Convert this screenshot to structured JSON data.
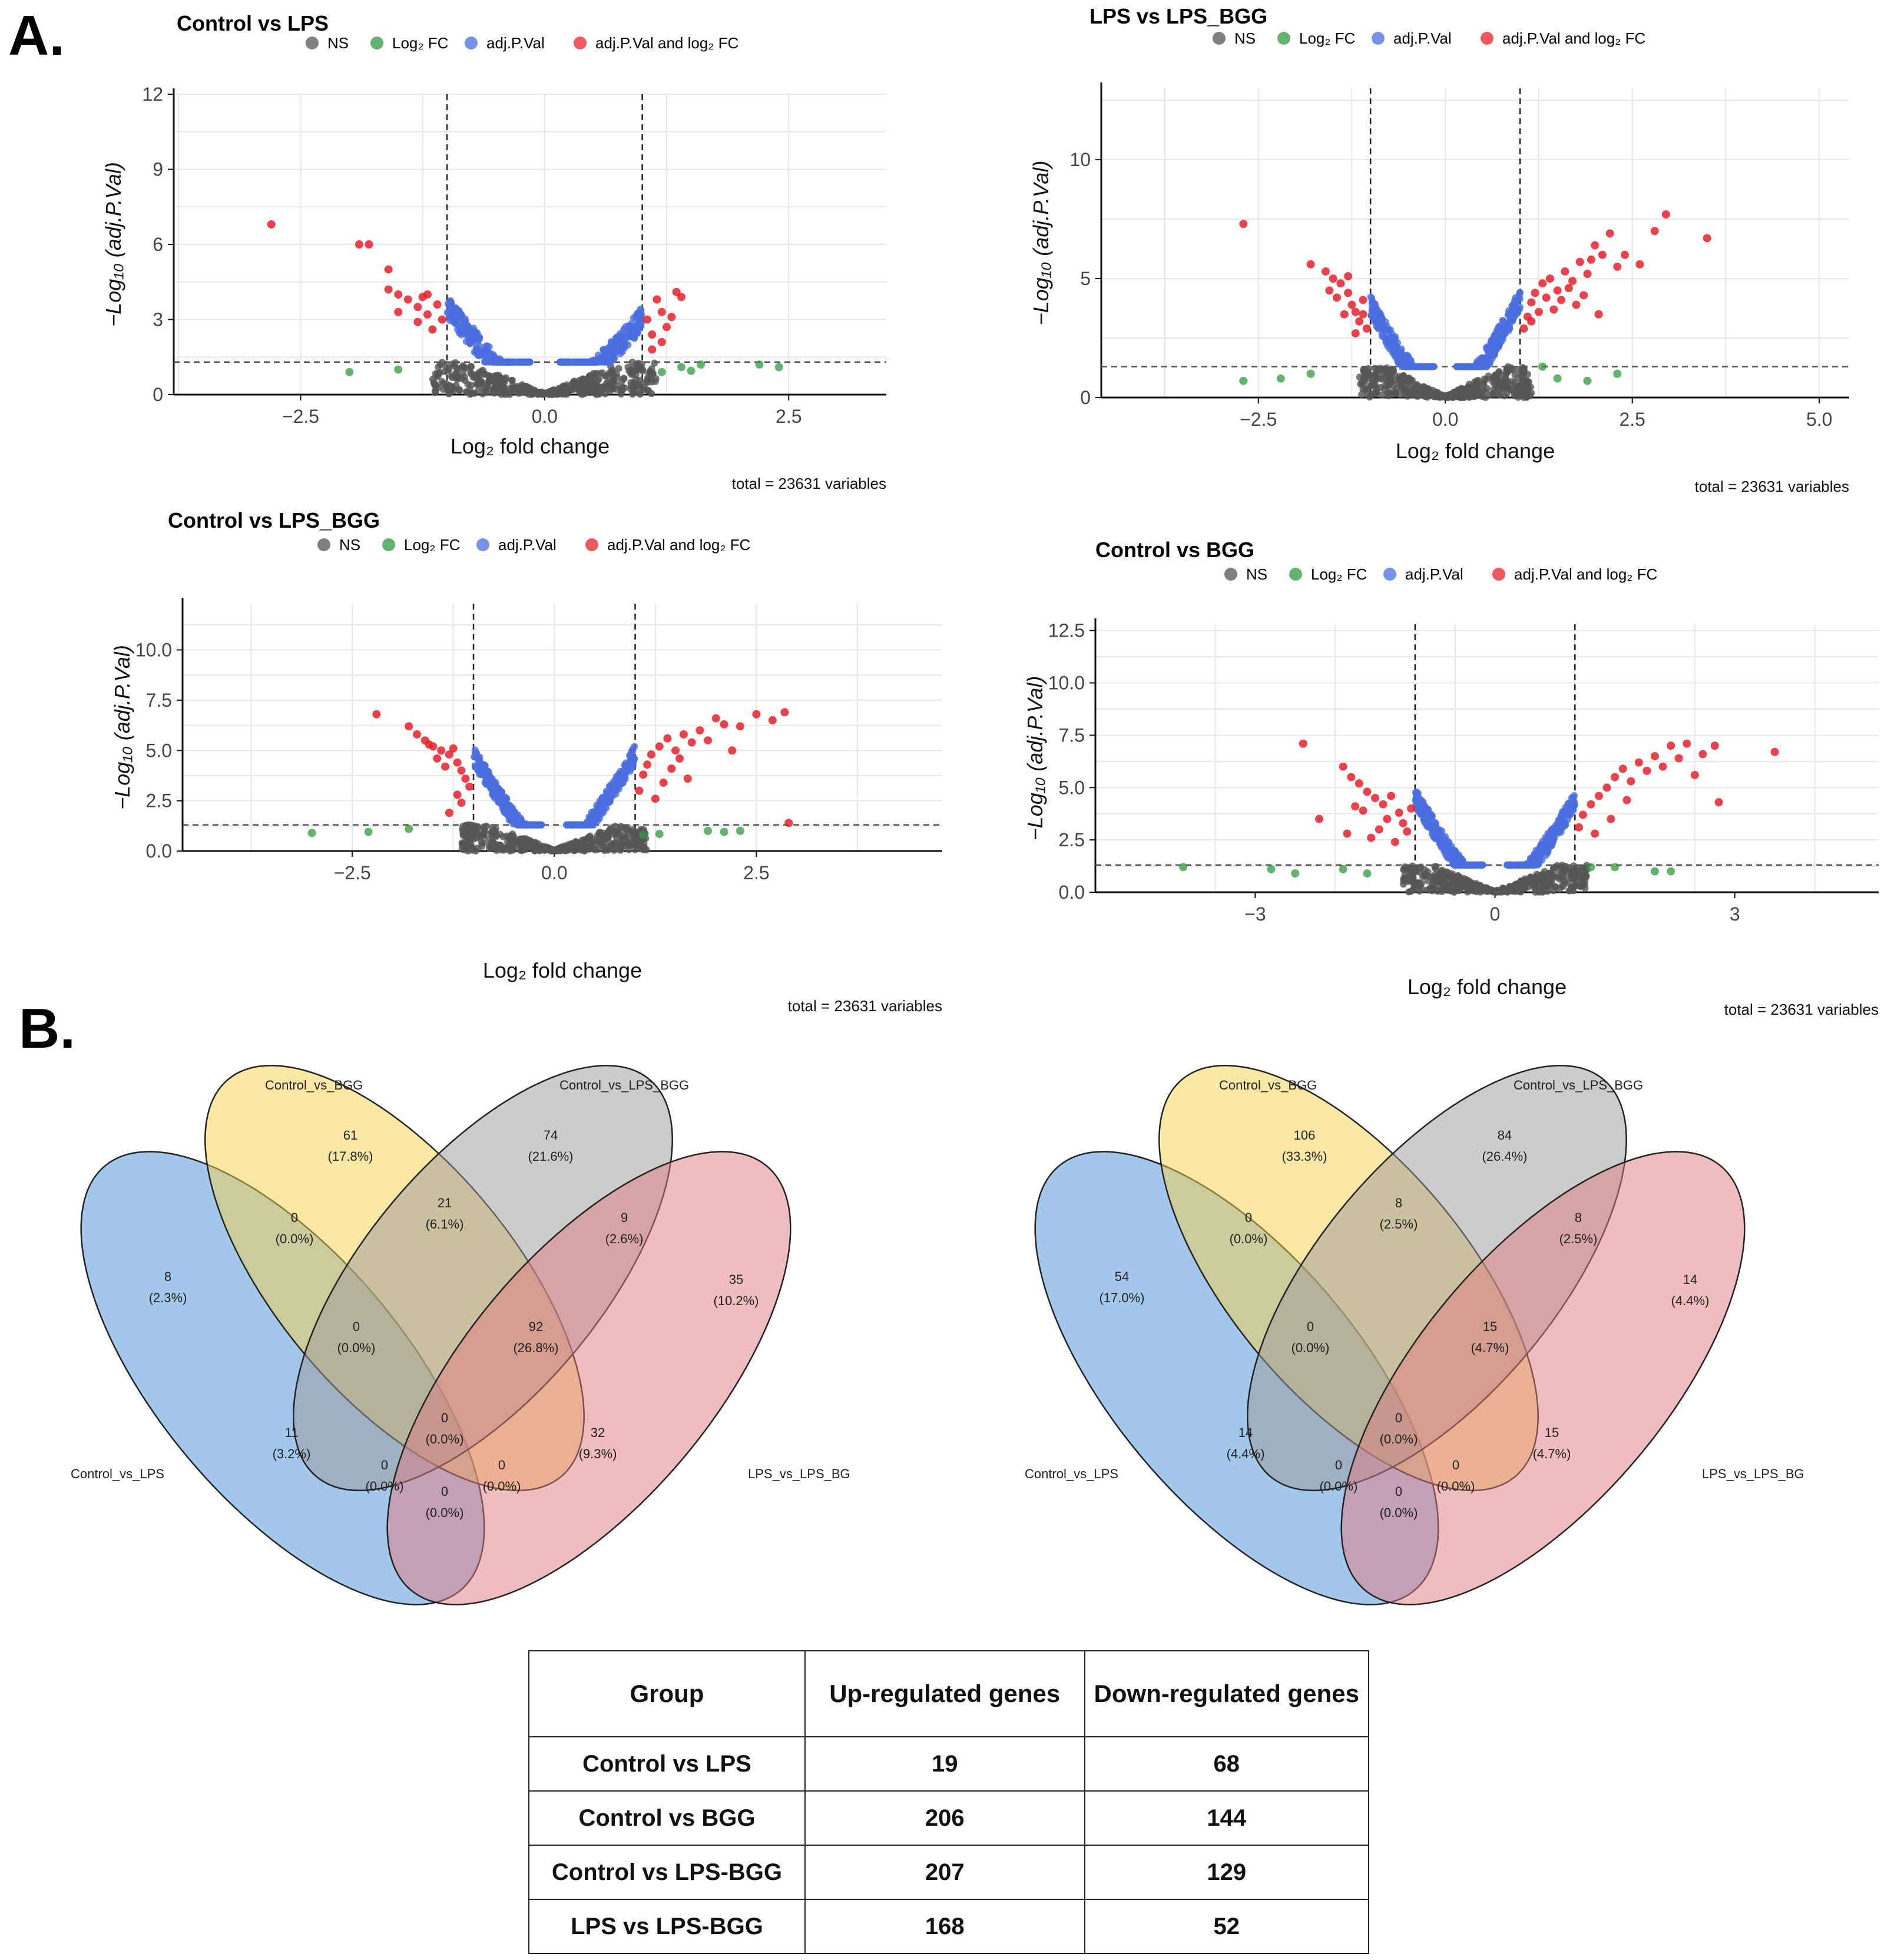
{
  "panel_labels": {
    "a": "A.",
    "b": "B."
  },
  "colors": {
    "ns": "#555555",
    "log2fc": "#2e9a3c",
    "adjp": "#4a6ee0",
    "both": "#e8202a",
    "venn_blue": "#4a90d9",
    "venn_yellow": "#f2d24a",
    "venn_gray": "#9a9a9a",
    "venn_red": "#e07a80"
  },
  "legend": {
    "ns": "NS",
    "log2fc": "Log₂ FC",
    "adjp": "adj.P.Val",
    "both": "adj.P.Val and log₂ FC"
  },
  "chart_data": [
    {
      "type": "scatter",
      "title": "Control vs LPS",
      "xlabel": "Log₂ fold change",
      "ylabel": "−Log₁₀ (adj.P.Val)",
      "xlim": [
        -3.8,
        3.5
      ],
      "ylim": [
        0,
        12
      ],
      "xticks": [
        -2.5,
        0.0,
        2.5
      ],
      "xtick_labels": [
        "−2.5",
        "0.0",
        "2.5"
      ],
      "yticks": [
        0,
        3,
        6,
        9,
        12
      ],
      "ytick_labels": [
        "0",
        "3",
        "6",
        "9",
        "12"
      ],
      "fc_cutoff": 1,
      "p_cutoff": 1.3,
      "total": "total = 23631 variables",
      "left_peak": 4.0,
      "right_peak": 3.5,
      "red_left": [
        [
          -2.8,
          6.8
        ],
        [
          -1.9,
          6.0
        ],
        [
          -1.8,
          6.0
        ],
        [
          -1.6,
          5.0
        ],
        [
          -1.6,
          4.2
        ],
        [
          -1.5,
          4.0
        ],
        [
          -1.4,
          3.8
        ],
        [
          -1.3,
          3.5
        ],
        [
          -1.25,
          3.9
        ],
        [
          -1.2,
          3.2
        ],
        [
          -1.15,
          2.6
        ],
        [
          -1.1,
          3.6
        ],
        [
          -1.05,
          3.0
        ],
        [
          -1.5,
          3.3
        ],
        [
          -1.3,
          2.9
        ],
        [
          -1.2,
          4.0
        ]
      ],
      "red_right": [
        [
          1.05,
          3.0
        ],
        [
          1.1,
          2.4
        ],
        [
          1.15,
          3.8
        ],
        [
          1.2,
          3.3
        ],
        [
          1.25,
          2.7
        ],
        [
          1.3,
          3.1
        ],
        [
          1.35,
          4.1
        ],
        [
          1.4,
          3.9
        ],
        [
          1.1,
          1.8
        ],
        [
          1.2,
          2.1
        ]
      ],
      "green": [
        [
          -2.0,
          0.9
        ],
        [
          -1.5,
          1.0
        ],
        [
          1.2,
          0.9
        ],
        [
          1.4,
          1.1
        ],
        [
          1.6,
          1.2
        ],
        [
          2.2,
          1.2
        ],
        [
          2.4,
          1.1
        ],
        [
          1.5,
          0.95
        ]
      ]
    },
    {
      "type": "scatter",
      "title": "LPS vs LPS_BGG",
      "xlabel": "Log₂ fold change",
      "ylabel": "−Log₁₀ (adj.P.Val)",
      "xlim": [
        -4.6,
        5.4
      ],
      "ylim": [
        0,
        13
      ],
      "xticks": [
        -2.5,
        0.0,
        2.5,
        5.0
      ],
      "xtick_labels": [
        "−2.5",
        "0.0",
        "2.5",
        "5.0"
      ],
      "yticks": [
        0,
        5,
        10
      ],
      "ytick_labels": [
        "0",
        "5",
        "10"
      ],
      "fc_cutoff": 1,
      "p_cutoff": 1.3,
      "total": "total = 23631 variables",
      "left_peak": 4.3,
      "right_peak": 4.6,
      "red_left": [
        [
          -2.7,
          7.3
        ],
        [
          -1.8,
          5.6
        ],
        [
          -1.6,
          5.3
        ],
        [
          -1.5,
          5.0
        ],
        [
          -1.4,
          4.8
        ],
        [
          -1.3,
          4.4
        ],
        [
          -1.25,
          3.9
        ],
        [
          -1.2,
          3.6
        ],
        [
          -1.15,
          3.2
        ],
        [
          -1.1,
          4.1
        ],
        [
          -1.05,
          2.9
        ],
        [
          -1.35,
          3.5
        ],
        [
          -1.45,
          4.2
        ],
        [
          -1.2,
          2.7
        ],
        [
          -1.1,
          3.5
        ],
        [
          -1.3,
          5.1
        ],
        [
          -1.55,
          4.5
        ]
      ],
      "red_right": [
        [
          1.05,
          2.9
        ],
        [
          1.1,
          3.4
        ],
        [
          1.15,
          4.0
        ],
        [
          1.2,
          4.4
        ],
        [
          1.3,
          4.8
        ],
        [
          1.4,
          5.0
        ],
        [
          1.5,
          4.5
        ],
        [
          1.6,
          5.3
        ],
        [
          1.7,
          4.9
        ],
        [
          1.8,
          5.7
        ],
        [
          1.9,
          5.2
        ],
        [
          2.0,
          6.4
        ],
        [
          2.1,
          6.0
        ],
        [
          2.2,
          6.9
        ],
        [
          2.3,
          5.5
        ],
        [
          2.4,
          6.0
        ],
        [
          2.6,
          5.6
        ],
        [
          2.8,
          7.0
        ],
        [
          2.95,
          7.7
        ],
        [
          3.5,
          6.7
        ],
        [
          1.25,
          3.6
        ],
        [
          1.35,
          4.2
        ],
        [
          1.45,
          3.7
        ],
        [
          1.55,
          4.1
        ],
        [
          1.65,
          4.6
        ],
        [
          1.75,
          3.9
        ],
        [
          1.85,
          4.3
        ],
        [
          1.95,
          5.8
        ],
        [
          2.05,
          3.5
        ],
        [
          1.15,
          3.2
        ]
      ],
      "green": [
        [
          -2.7,
          0.7
        ],
        [
          -2.2,
          0.8
        ],
        [
          -1.8,
          1.0
        ],
        [
          1.3,
          1.3
        ],
        [
          1.5,
          0.8
        ],
        [
          1.9,
          0.7
        ],
        [
          2.3,
          1.0
        ]
      ]
    },
    {
      "type": "scatter",
      "title": "Control vs LPS_BGG",
      "xlabel": "Log₂ fold change",
      "ylabel": "−Log₁₀ (adj.P.Val)",
      "xlim": [
        -4.6,
        4.8
      ],
      "ylim": [
        0,
        12.3
      ],
      "xticks": [
        -2.5,
        0.0,
        2.5
      ],
      "xtick_labels": [
        "−2.5",
        "0.0",
        "2.5"
      ],
      "yticks": [
        0.0,
        2.5,
        5.0,
        7.5,
        10.0
      ],
      "ytick_labels": [
        "0.0",
        "2.5",
        "5.0",
        "7.5",
        "10.0"
      ],
      "fc_cutoff": 1,
      "p_cutoff": 1.3,
      "total": "total = 23631 variables",
      "left_peak": 5.2,
      "right_peak": 5.3,
      "red_left": [
        [
          -2.2,
          6.8
        ],
        [
          -1.8,
          6.2
        ],
        [
          -1.7,
          5.8
        ],
        [
          -1.6,
          5.5
        ],
        [
          -1.5,
          5.2
        ],
        [
          -1.4,
          5.0
        ],
        [
          -1.3,
          4.8
        ],
        [
          -1.2,
          4.4
        ],
        [
          -1.15,
          4.0
        ],
        [
          -1.1,
          3.6
        ],
        [
          -1.05,
          3.2
        ],
        [
          -1.35,
          4.2
        ],
        [
          -1.25,
          5.1
        ],
        [
          -1.45,
          4.6
        ],
        [
          -1.55,
          5.3
        ],
        [
          -1.2,
          2.8
        ],
        [
          -1.3,
          1.9
        ],
        [
          -1.15,
          2.4
        ]
      ],
      "red_right": [
        [
          1.05,
          3.0
        ],
        [
          1.1,
          3.8
        ],
        [
          1.15,
          4.3
        ],
        [
          1.2,
          4.8
        ],
        [
          1.3,
          5.2
        ],
        [
          1.4,
          5.6
        ],
        [
          1.5,
          5.0
        ],
        [
          1.6,
          5.8
        ],
        [
          1.7,
          5.4
        ],
        [
          1.8,
          6.0
        ],
        [
          1.9,
          5.5
        ],
        [
          2.0,
          6.6
        ],
        [
          2.1,
          6.3
        ],
        [
          2.3,
          6.2
        ],
        [
          2.5,
          6.8
        ],
        [
          2.7,
          6.5
        ],
        [
          2.85,
          6.9
        ],
        [
          2.2,
          5.0
        ],
        [
          1.35,
          3.4
        ],
        [
          1.25,
          2.6
        ],
        [
          1.45,
          4.1
        ],
        [
          1.55,
          4.6
        ],
        [
          1.65,
          3.6
        ],
        [
          2.9,
          1.4
        ]
      ],
      "green": [
        [
          -3.0,
          0.9
        ],
        [
          -2.3,
          0.95
        ],
        [
          -1.8,
          1.1
        ],
        [
          1.1,
          0.8
        ],
        [
          1.3,
          0.85
        ],
        [
          1.9,
          1.0
        ],
        [
          2.1,
          0.95
        ],
        [
          2.3,
          1.0
        ]
      ]
    },
    {
      "type": "scatter",
      "title": "Control vs BGG",
      "xlabel": "Log₂ fold change",
      "ylabel": "−Log₁₀ (adj.P.Val)",
      "xlim": [
        -5.0,
        4.8
      ],
      "ylim": [
        0,
        12.8
      ],
      "xticks": [
        -3,
        0,
        3
      ],
      "xtick_labels": [
        "−3",
        "0",
        "3"
      ],
      "yticks": [
        0.0,
        2.5,
        5.0,
        7.5,
        10.0,
        12.5
      ],
      "ytick_labels": [
        "0.0",
        "2.5",
        "5.0",
        "7.5",
        "10.0",
        "12.5"
      ],
      "fc_cutoff": 1,
      "p_cutoff": 1.3,
      "total": "total = 23631 variables",
      "left_peak": 5.0,
      "right_peak": 4.8,
      "red_left": [
        [
          -2.4,
          7.1
        ],
        [
          -2.2,
          3.5
        ],
        [
          -1.9,
          6.0
        ],
        [
          -1.8,
          5.5
        ],
        [
          -1.7,
          5.2
        ],
        [
          -1.6,
          4.8
        ],
        [
          -1.5,
          4.5
        ],
        [
          -1.4,
          4.2
        ],
        [
          -1.3,
          4.6
        ],
        [
          -1.2,
          3.8
        ],
        [
          -1.15,
          3.3
        ],
        [
          -1.1,
          2.9
        ],
        [
          -1.05,
          4.0
        ],
        [
          -1.35,
          3.5
        ],
        [
          -1.45,
          3.0
        ],
        [
          -1.55,
          2.6
        ],
        [
          -1.65,
          3.9
        ],
        [
          -1.75,
          4.1
        ],
        [
          -1.25,
          2.4
        ],
        [
          -1.85,
          2.8
        ]
      ],
      "red_right": [
        [
          1.05,
          3.1
        ],
        [
          1.1,
          3.7
        ],
        [
          1.2,
          4.2
        ],
        [
          1.3,
          4.6
        ],
        [
          1.4,
          5.0
        ],
        [
          1.5,
          5.5
        ],
        [
          1.6,
          5.9
        ],
        [
          1.7,
          5.3
        ],
        [
          1.8,
          6.2
        ],
        [
          1.9,
          5.8
        ],
        [
          2.0,
          6.5
        ],
        [
          2.1,
          6.0
        ],
        [
          2.2,
          7.0
        ],
        [
          2.3,
          6.4
        ],
        [
          2.4,
          7.1
        ],
        [
          2.6,
          6.6
        ],
        [
          2.75,
          7.0
        ],
        [
          2.8,
          4.3
        ],
        [
          3.5,
          6.7
        ],
        [
          1.25,
          2.8
        ],
        [
          1.45,
          3.5
        ],
        [
          1.65,
          4.4
        ],
        [
          2.5,
          5.6
        ]
      ],
      "green": [
        [
          -3.9,
          1.2
        ],
        [
          -2.8,
          1.1
        ],
        [
          -2.5,
          0.9
        ],
        [
          -1.9,
          1.1
        ],
        [
          -1.6,
          0.9
        ],
        [
          1.2,
          1.2
        ],
        [
          1.5,
          1.2
        ],
        [
          2.0,
          1.0
        ],
        [
          2.2,
          1.0
        ]
      ]
    }
  ],
  "venn": [
    {
      "sets": [
        "Control_vs_LPS",
        "Control_vs_BGG",
        "Control_vs_LPS_BGG",
        "LPS_vs_LPS_BG"
      ],
      "regions": [
        {
          "n": "8",
          "p": "(2.3%)"
        },
        {
          "n": "61",
          "p": "(17.8%)"
        },
        {
          "n": "74",
          "p": "(21.6%)"
        },
        {
          "n": "35",
          "p": "(10.2%)"
        },
        {
          "n": "0",
          "p": "(0.0%)"
        },
        {
          "n": "21",
          "p": "(6.1%)"
        },
        {
          "n": "9",
          "p": "(2.6%)"
        },
        {
          "n": "0",
          "p": "(0.0%)"
        },
        {
          "n": "92",
          "p": "(26.8%)"
        },
        {
          "n": "11",
          "p": "(3.2%)"
        },
        {
          "n": "0",
          "p": "(0.0%)"
        },
        {
          "n": "32",
          "p": "(9.3%)"
        },
        {
          "n": "0",
          "p": "(0.0%)"
        },
        {
          "n": "0",
          "p": "(0.0%)"
        },
        {
          "n": "0",
          "p": "(0.0%)"
        }
      ]
    },
    {
      "sets": [
        "Control_vs_LPS",
        "Control_vs_BGG",
        "Control_vs_LPS_BGG",
        "LPS_vs_LPS_BG"
      ],
      "regions": [
        {
          "n": "54",
          "p": "(17.0%)"
        },
        {
          "n": "106",
          "p": "(33.3%)"
        },
        {
          "n": "84",
          "p": "(26.4%)"
        },
        {
          "n": "14",
          "p": "(4.4%)"
        },
        {
          "n": "0",
          "p": "(0.0%)"
        },
        {
          "n": "8",
          "p": "(2.5%)"
        },
        {
          "n": "8",
          "p": "(2.5%)"
        },
        {
          "n": "0",
          "p": "(0.0%)"
        },
        {
          "n": "15",
          "p": "(4.7%)"
        },
        {
          "n": "14",
          "p": "(4.4%)"
        },
        {
          "n": "0",
          "p": "(0.0%)"
        },
        {
          "n": "15",
          "p": "(4.7%)"
        },
        {
          "n": "0",
          "p": "(0.0%)"
        },
        {
          "n": "0",
          "p": "(0.0%)"
        },
        {
          "n": "0",
          "p": "(0.0%)"
        }
      ]
    }
  ],
  "table": {
    "headers": [
      "Group",
      "Up-regulated genes",
      "Down-regulated genes"
    ],
    "rows": [
      [
        "Control vs LPS",
        "19",
        "68"
      ],
      [
        "Control vs BGG",
        "206",
        "144"
      ],
      [
        "Control vs LPS-BGG",
        "207",
        "129"
      ],
      [
        "LPS vs LPS-BGG",
        "168",
        "52"
      ]
    ]
  }
}
